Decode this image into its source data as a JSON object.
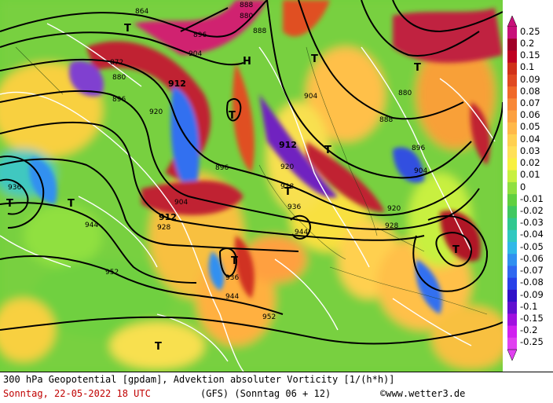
{
  "map": {
    "pressure_symbols": [
      {
        "text": "T"
      },
      {
        "text": "H"
      },
      {
        "text": "T"
      },
      {
        "text": "T"
      },
      {
        "text": "T"
      },
      {
        "text": "T"
      },
      {
        "text": "T"
      },
      {
        "text": "T"
      },
      {
        "text": "T"
      },
      {
        "text": "T"
      },
      {
        "text": "T"
      },
      {
        "text": "T"
      }
    ],
    "contour_labels": [
      "864",
      "872",
      "880",
      "888",
      "896",
      "904",
      "912",
      "920",
      "928",
      "936",
      "944",
      "952",
      "880",
      "888",
      "896",
      "904",
      "912",
      "920",
      "928",
      "936",
      "944",
      "952",
      "896",
      "904",
      "912",
      "920",
      "928",
      "936",
      "944",
      "896",
      "904",
      "880",
      "888"
    ],
    "contour_color": "#000000",
    "zero_label": "0"
  },
  "legend": {
    "labels": [
      "0.25",
      "0.2",
      "0.15",
      "0.1",
      "0.09",
      "0.08",
      "0.07",
      "0.06",
      "0.05",
      "0.04",
      "0.03",
      "0.02",
      "0.01",
      "0",
      "-0.01",
      "-0.02",
      "-0.03",
      "-0.04",
      "-0.05",
      "-0.06",
      "-0.07",
      "-0.08",
      "-0.09",
      "-0.1",
      "-0.15",
      "-0.2",
      "-0.25"
    ],
    "colors": [
      "#c8107a",
      "#a00028",
      "#c00020",
      "#d03018",
      "#e04820",
      "#f06828",
      "#f88838",
      "#fca040",
      "#ffb848",
      "#ffd050",
      "#ffe058",
      "#f8f040",
      "#c8f040",
      "#90e040",
      "#60d040",
      "#40c860",
      "#30c890",
      "#30c8c0",
      "#30b8e8",
      "#3090f0",
      "#3068f0",
      "#2840e8",
      "#3010c8",
      "#6010d0",
      "#a010e0",
      "#d020f0",
      "#e040f0"
    ]
  },
  "footer": {
    "title": "300 hPa Geopotential [gpdam], Advektion absoluter Vorticity [1/(h*h)]",
    "date": "Sonntag, 22-05-2022  18 UTC",
    "model": "(GFS)  (Sonntag 06 + 12)",
    "copyright": "©www.wetter3.de"
  }
}
